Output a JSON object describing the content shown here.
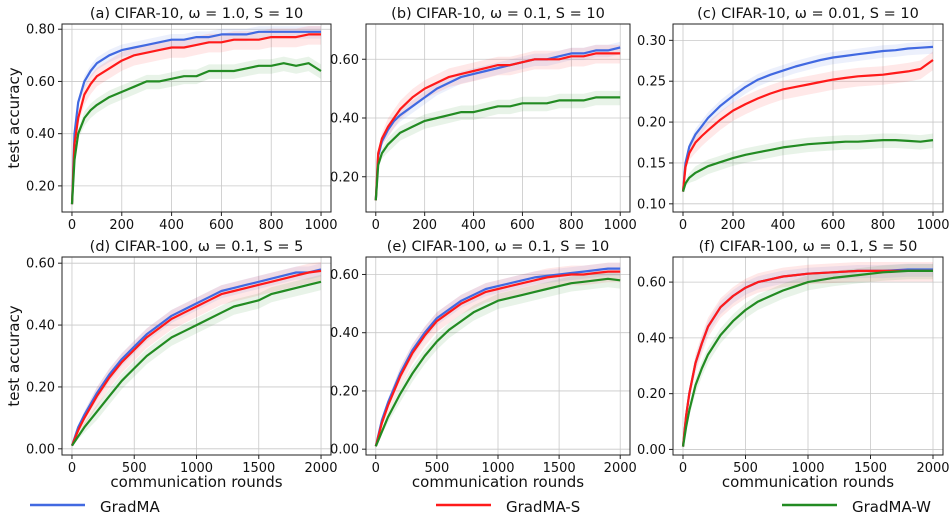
{
  "figure": {
    "series_names": [
      "GradMA",
      "GradMA-S",
      "GradMA-W"
    ],
    "series_colors": {
      "GradMA": "#4169e1",
      "GradMA-S": "#ff1a1a",
      "GradMA-W": "#228b22"
    },
    "legend_labels": [
      "GradMA",
      "GradMA-S",
      "GradMA-W"
    ],
    "ylabel": "test accuracy",
    "xlabel": "communication rounds"
  },
  "chart_data": [
    {
      "type": "line",
      "title": "(a) CIFAR-10, ω = 1.0, S = 10",
      "xlim": [
        -40,
        1040
      ],
      "ylim": [
        0.1,
        0.82
      ],
      "xticks": [
        0,
        200,
        400,
        600,
        800,
        1000
      ],
      "xticklabels": [
        "0",
        "200",
        "400",
        "600",
        "800",
        "1000"
      ],
      "yticks": [
        0.2,
        0.4,
        0.6,
        0.8
      ],
      "yticklabels": [
        "0.20",
        "0.40",
        "0.60",
        "0.80"
      ],
      "x": [
        0,
        10,
        25,
        50,
        75,
        100,
        150,
        200,
        250,
        300,
        350,
        400,
        450,
        500,
        550,
        600,
        650,
        700,
        750,
        800,
        850,
        900,
        950,
        1000
      ],
      "series": [
        {
          "name": "GradMA",
          "values": [
            0.13,
            0.4,
            0.52,
            0.6,
            0.64,
            0.67,
            0.7,
            0.72,
            0.73,
            0.74,
            0.75,
            0.76,
            0.76,
            0.77,
            0.77,
            0.78,
            0.78,
            0.78,
            0.79,
            0.79,
            0.79,
            0.79,
            0.79,
            0.79
          ]
        },
        {
          "name": "GradMA-S",
          "values": [
            0.13,
            0.36,
            0.46,
            0.55,
            0.59,
            0.62,
            0.65,
            0.68,
            0.7,
            0.71,
            0.72,
            0.73,
            0.73,
            0.74,
            0.75,
            0.75,
            0.76,
            0.76,
            0.76,
            0.77,
            0.77,
            0.77,
            0.78,
            0.78
          ]
        },
        {
          "name": "GradMA-W",
          "values": [
            0.13,
            0.3,
            0.4,
            0.46,
            0.49,
            0.51,
            0.54,
            0.56,
            0.58,
            0.6,
            0.6,
            0.61,
            0.62,
            0.62,
            0.64,
            0.64,
            0.64,
            0.65,
            0.66,
            0.66,
            0.67,
            0.66,
            0.67,
            0.64
          ]
        }
      ],
      "show_ylabel": true,
      "show_xlabel": false
    },
    {
      "type": "line",
      "title": "(b) CIFAR-10, ω = 0.1, S = 10",
      "xlim": [
        -40,
        1040
      ],
      "ylim": [
        0.08,
        0.72
      ],
      "xticks": [
        0,
        200,
        400,
        600,
        800,
        1000
      ],
      "xticklabels": [
        "0",
        "200",
        "400",
        "600",
        "800",
        "1000"
      ],
      "yticks": [
        0.2,
        0.4,
        0.6
      ],
      "yticklabels": [
        "0.20",
        "0.40",
        "0.60"
      ],
      "x": [
        0,
        10,
        25,
        50,
        75,
        100,
        150,
        200,
        250,
        300,
        350,
        400,
        450,
        500,
        550,
        600,
        650,
        700,
        750,
        800,
        850,
        900,
        950,
        1000
      ],
      "series": [
        {
          "name": "GradMA",
          "values": [
            0.12,
            0.27,
            0.32,
            0.36,
            0.39,
            0.41,
            0.44,
            0.47,
            0.5,
            0.52,
            0.54,
            0.55,
            0.56,
            0.57,
            0.58,
            0.59,
            0.6,
            0.6,
            0.61,
            0.62,
            0.62,
            0.63,
            0.63,
            0.64
          ]
        },
        {
          "name": "GradMA-S",
          "values": [
            0.12,
            0.28,
            0.33,
            0.37,
            0.4,
            0.43,
            0.47,
            0.5,
            0.52,
            0.54,
            0.55,
            0.56,
            0.57,
            0.58,
            0.58,
            0.59,
            0.6,
            0.6,
            0.6,
            0.61,
            0.61,
            0.62,
            0.62,
            0.62
          ]
        },
        {
          "name": "GradMA-W",
          "values": [
            0.12,
            0.24,
            0.28,
            0.31,
            0.33,
            0.35,
            0.37,
            0.39,
            0.4,
            0.41,
            0.42,
            0.42,
            0.43,
            0.44,
            0.44,
            0.45,
            0.45,
            0.45,
            0.46,
            0.46,
            0.46,
            0.47,
            0.47,
            0.47
          ]
        }
      ],
      "show_ylabel": false,
      "show_xlabel": false
    },
    {
      "type": "line",
      "title": "(c) CIFAR-10, ω = 0.01, S = 10",
      "xlim": [
        -40,
        1040
      ],
      "ylim": [
        0.09,
        0.32
      ],
      "xticks": [
        0,
        200,
        400,
        600,
        800,
        1000
      ],
      "xticklabels": [
        "0",
        "200",
        "400",
        "600",
        "800",
        "1000"
      ],
      "yticks": [
        0.1,
        0.15,
        0.2,
        0.25,
        0.3
      ],
      "yticklabels": [
        "0.10",
        "0.15",
        "0.20",
        "0.25",
        "0.30"
      ],
      "x": [
        0,
        10,
        25,
        50,
        75,
        100,
        150,
        200,
        250,
        300,
        350,
        400,
        450,
        500,
        550,
        600,
        650,
        700,
        750,
        800,
        850,
        900,
        950,
        1000
      ],
      "series": [
        {
          "name": "GradMA",
          "values": [
            0.115,
            0.15,
            0.17,
            0.185,
            0.195,
            0.205,
            0.22,
            0.232,
            0.243,
            0.252,
            0.258,
            0.263,
            0.268,
            0.272,
            0.276,
            0.279,
            0.281,
            0.283,
            0.285,
            0.287,
            0.288,
            0.29,
            0.291,
            0.292
          ]
        },
        {
          "name": "GradMA-S",
          "values": [
            0.115,
            0.145,
            0.162,
            0.175,
            0.183,
            0.19,
            0.203,
            0.214,
            0.222,
            0.229,
            0.235,
            0.24,
            0.243,
            0.246,
            0.249,
            0.252,
            0.254,
            0.256,
            0.257,
            0.258,
            0.26,
            0.262,
            0.265,
            0.276
          ]
        },
        {
          "name": "GradMA-W",
          "values": [
            0.115,
            0.125,
            0.132,
            0.138,
            0.142,
            0.146,
            0.151,
            0.156,
            0.16,
            0.163,
            0.166,
            0.169,
            0.171,
            0.173,
            0.174,
            0.175,
            0.176,
            0.176,
            0.177,
            0.178,
            0.178,
            0.177,
            0.176,
            0.178
          ]
        }
      ],
      "show_ylabel": false,
      "show_xlabel": false
    },
    {
      "type": "line",
      "title": "(d) CIFAR-100, ω = 0.1, S = 5",
      "xlim": [
        -80,
        2080
      ],
      "ylim": [
        -0.02,
        0.62
      ],
      "xticks": [
        0,
        500,
        1000,
        1500,
        2000
      ],
      "xticklabels": [
        "0",
        "500",
        "1000",
        "1500",
        "2000"
      ],
      "yticks": [
        0.0,
        0.2,
        0.4,
        0.6
      ],
      "yticklabels": [
        "0.00",
        "0.20",
        "0.40",
        "0.60"
      ],
      "x": [
        0,
        50,
        100,
        200,
        300,
        400,
        500,
        600,
        700,
        800,
        900,
        1000,
        1100,
        1200,
        1300,
        1400,
        1500,
        1600,
        1700,
        1800,
        1900,
        2000
      ],
      "series": [
        {
          "name": "GradMA",
          "values": [
            0.01,
            0.07,
            0.11,
            0.18,
            0.24,
            0.29,
            0.33,
            0.37,
            0.4,
            0.43,
            0.45,
            0.47,
            0.49,
            0.51,
            0.52,
            0.53,
            0.54,
            0.55,
            0.56,
            0.57,
            0.57,
            0.58
          ]
        },
        {
          "name": "GradMA-S",
          "values": [
            0.01,
            0.06,
            0.1,
            0.17,
            0.23,
            0.28,
            0.32,
            0.36,
            0.39,
            0.42,
            0.44,
            0.46,
            0.48,
            0.5,
            0.51,
            0.52,
            0.53,
            0.54,
            0.55,
            0.56,
            0.57,
            0.575
          ]
        },
        {
          "name": "GradMA-W",
          "values": [
            0.01,
            0.04,
            0.07,
            0.12,
            0.17,
            0.22,
            0.26,
            0.3,
            0.33,
            0.36,
            0.38,
            0.4,
            0.42,
            0.44,
            0.46,
            0.47,
            0.48,
            0.5,
            0.51,
            0.52,
            0.53,
            0.54
          ]
        }
      ],
      "show_ylabel": true,
      "show_xlabel": true
    },
    {
      "type": "line",
      "title": "(e) CIFAR-100, ω = 0.1, S = 10",
      "xlim": [
        -80,
        2080
      ],
      "ylim": [
        -0.02,
        0.66
      ],
      "xticks": [
        0,
        500,
        1000,
        1500,
        2000
      ],
      "xticklabels": [
        "0",
        "500",
        "1000",
        "1500",
        "2000"
      ],
      "yticks": [
        0.0,
        0.2,
        0.4,
        0.6
      ],
      "yticklabels": [
        "0.00",
        "0.20",
        "0.40",
        "0.60"
      ],
      "x": [
        0,
        50,
        100,
        200,
        300,
        400,
        500,
        600,
        700,
        800,
        900,
        1000,
        1100,
        1200,
        1300,
        1400,
        1500,
        1600,
        1700,
        1800,
        1900,
        2000
      ],
      "series": [
        {
          "name": "GradMA",
          "values": [
            0.01,
            0.1,
            0.16,
            0.26,
            0.34,
            0.4,
            0.45,
            0.48,
            0.51,
            0.53,
            0.55,
            0.56,
            0.57,
            0.58,
            0.59,
            0.595,
            0.6,
            0.605,
            0.61,
            0.615,
            0.62,
            0.62
          ]
        },
        {
          "name": "GradMA-S",
          "values": [
            0.01,
            0.09,
            0.15,
            0.25,
            0.33,
            0.39,
            0.44,
            0.47,
            0.5,
            0.52,
            0.54,
            0.55,
            0.56,
            0.57,
            0.58,
            0.59,
            0.595,
            0.6,
            0.6,
            0.605,
            0.61,
            0.61
          ]
        },
        {
          "name": "GradMA-W",
          "values": [
            0.01,
            0.06,
            0.11,
            0.19,
            0.26,
            0.32,
            0.37,
            0.41,
            0.44,
            0.47,
            0.49,
            0.51,
            0.52,
            0.53,
            0.54,
            0.55,
            0.56,
            0.57,
            0.575,
            0.58,
            0.585,
            0.58
          ]
        }
      ],
      "show_ylabel": false,
      "show_xlabel": true
    },
    {
      "type": "line",
      "title": "(f) CIFAR-100, ω = 0.1, S = 50",
      "xlim": [
        -80,
        2080
      ],
      "ylim": [
        -0.02,
        0.69
      ],
      "xticks": [
        0,
        500,
        1000,
        1500,
        2000
      ],
      "xticklabels": [
        "0",
        "500",
        "1000",
        "1500",
        "2000"
      ],
      "yticks": [
        0.0,
        0.2,
        0.4,
        0.6
      ],
      "yticklabels": [
        "0.00",
        "0.20",
        "0.40",
        "0.60"
      ],
      "x": [
        0,
        25,
        50,
        100,
        150,
        200,
        300,
        400,
        500,
        600,
        700,
        800,
        900,
        1000,
        1200,
        1400,
        1600,
        1800,
        2000
      ],
      "series": [
        {
          "name": "GradMA",
          "values": [
            0.01,
            0.12,
            0.2,
            0.31,
            0.38,
            0.44,
            0.51,
            0.55,
            0.58,
            0.6,
            0.61,
            0.62,
            0.625,
            0.63,
            0.635,
            0.64,
            0.64,
            0.645,
            0.645
          ]
        },
        {
          "name": "GradMA-S",
          "values": [
            0.01,
            0.12,
            0.2,
            0.31,
            0.38,
            0.44,
            0.51,
            0.55,
            0.58,
            0.6,
            0.61,
            0.62,
            0.625,
            0.63,
            0.635,
            0.64,
            0.64,
            0.64,
            0.64
          ]
        },
        {
          "name": "GradMA-W",
          "values": [
            0.01,
            0.08,
            0.14,
            0.23,
            0.29,
            0.34,
            0.41,
            0.46,
            0.5,
            0.53,
            0.55,
            0.57,
            0.585,
            0.6,
            0.615,
            0.625,
            0.635,
            0.64,
            0.64
          ]
        }
      ],
      "show_ylabel": false,
      "show_xlabel": true
    }
  ]
}
